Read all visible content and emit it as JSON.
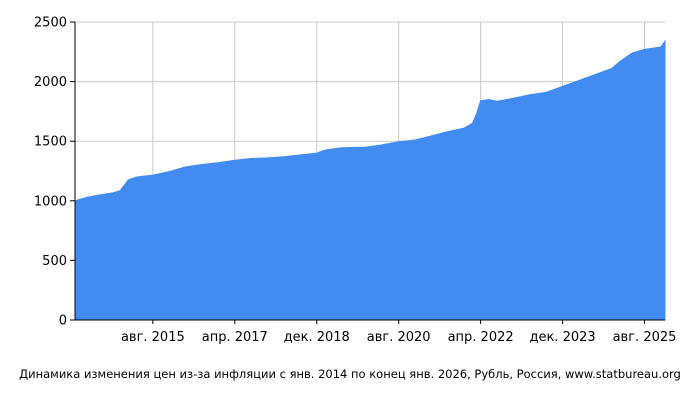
{
  "chart_data": {
    "type": "area",
    "title": "",
    "xlabel": "",
    "ylabel": "",
    "ylim": [
      0,
      2500
    ],
    "xlim": [
      "2014-01",
      "2026-01"
    ],
    "grid": true,
    "fill_color": "#428bf0",
    "grid_color": "#c8c8c8",
    "y_ticks": [
      0,
      500,
      1000,
      1500,
      2000,
      2500
    ],
    "x_ticks": [
      {
        "date": "2015-08",
        "label": "авг. 2015"
      },
      {
        "date": "2017-04",
        "label": "апр. 2017"
      },
      {
        "date": "2018-12",
        "label": "дек. 2018"
      },
      {
        "date": "2020-08",
        "label": "авг. 2020"
      },
      {
        "date": "2022-04",
        "label": "апр. 2022"
      },
      {
        "date": "2023-12",
        "label": "дек. 2023"
      },
      {
        "date": "2025-08",
        "label": "авг. 2025"
      }
    ],
    "series": [
      {
        "points": [
          [
            "2014-01",
            1000
          ],
          [
            "2014-04",
            1030
          ],
          [
            "2014-07",
            1050
          ],
          [
            "2014-10",
            1065
          ],
          [
            "2014-12",
            1085
          ],
          [
            "2015-01",
            1130
          ],
          [
            "2015-02",
            1175
          ],
          [
            "2015-04",
            1200
          ],
          [
            "2015-08",
            1215
          ],
          [
            "2015-12",
            1245
          ],
          [
            "2016-04",
            1285
          ],
          [
            "2016-08",
            1305
          ],
          [
            "2016-12",
            1320
          ],
          [
            "2017-04",
            1340
          ],
          [
            "2017-08",
            1355
          ],
          [
            "2017-12",
            1360
          ],
          [
            "2018-04",
            1370
          ],
          [
            "2018-08",
            1385
          ],
          [
            "2018-12",
            1400
          ],
          [
            "2019-02",
            1425
          ],
          [
            "2019-06",
            1445
          ],
          [
            "2019-12",
            1450
          ],
          [
            "2020-04",
            1470
          ],
          [
            "2020-08",
            1495
          ],
          [
            "2020-12",
            1510
          ],
          [
            "2021-04",
            1545
          ],
          [
            "2021-08",
            1580
          ],
          [
            "2021-12",
            1610
          ],
          [
            "2022-02",
            1650
          ],
          [
            "2022-03",
            1730
          ],
          [
            "2022-04",
            1840
          ],
          [
            "2022-06",
            1850
          ],
          [
            "2022-08",
            1835
          ],
          [
            "2022-12",
            1860
          ],
          [
            "2023-04",
            1890
          ],
          [
            "2023-08",
            1910
          ],
          [
            "2023-12",
            1960
          ],
          [
            "2024-04",
            2010
          ],
          [
            "2024-08",
            2060
          ],
          [
            "2024-12",
            2110
          ],
          [
            "2025-02",
            2170
          ],
          [
            "2025-05",
            2240
          ],
          [
            "2025-08",
            2270
          ],
          [
            "2025-12",
            2290
          ],
          [
            "2026-01",
            2340
          ]
        ]
      }
    ]
  },
  "caption": "Динамика изменения цен из-за инфляции с янв. 2014 по конец янв. 2026, Рубль, Россия, www.statbureau.org"
}
